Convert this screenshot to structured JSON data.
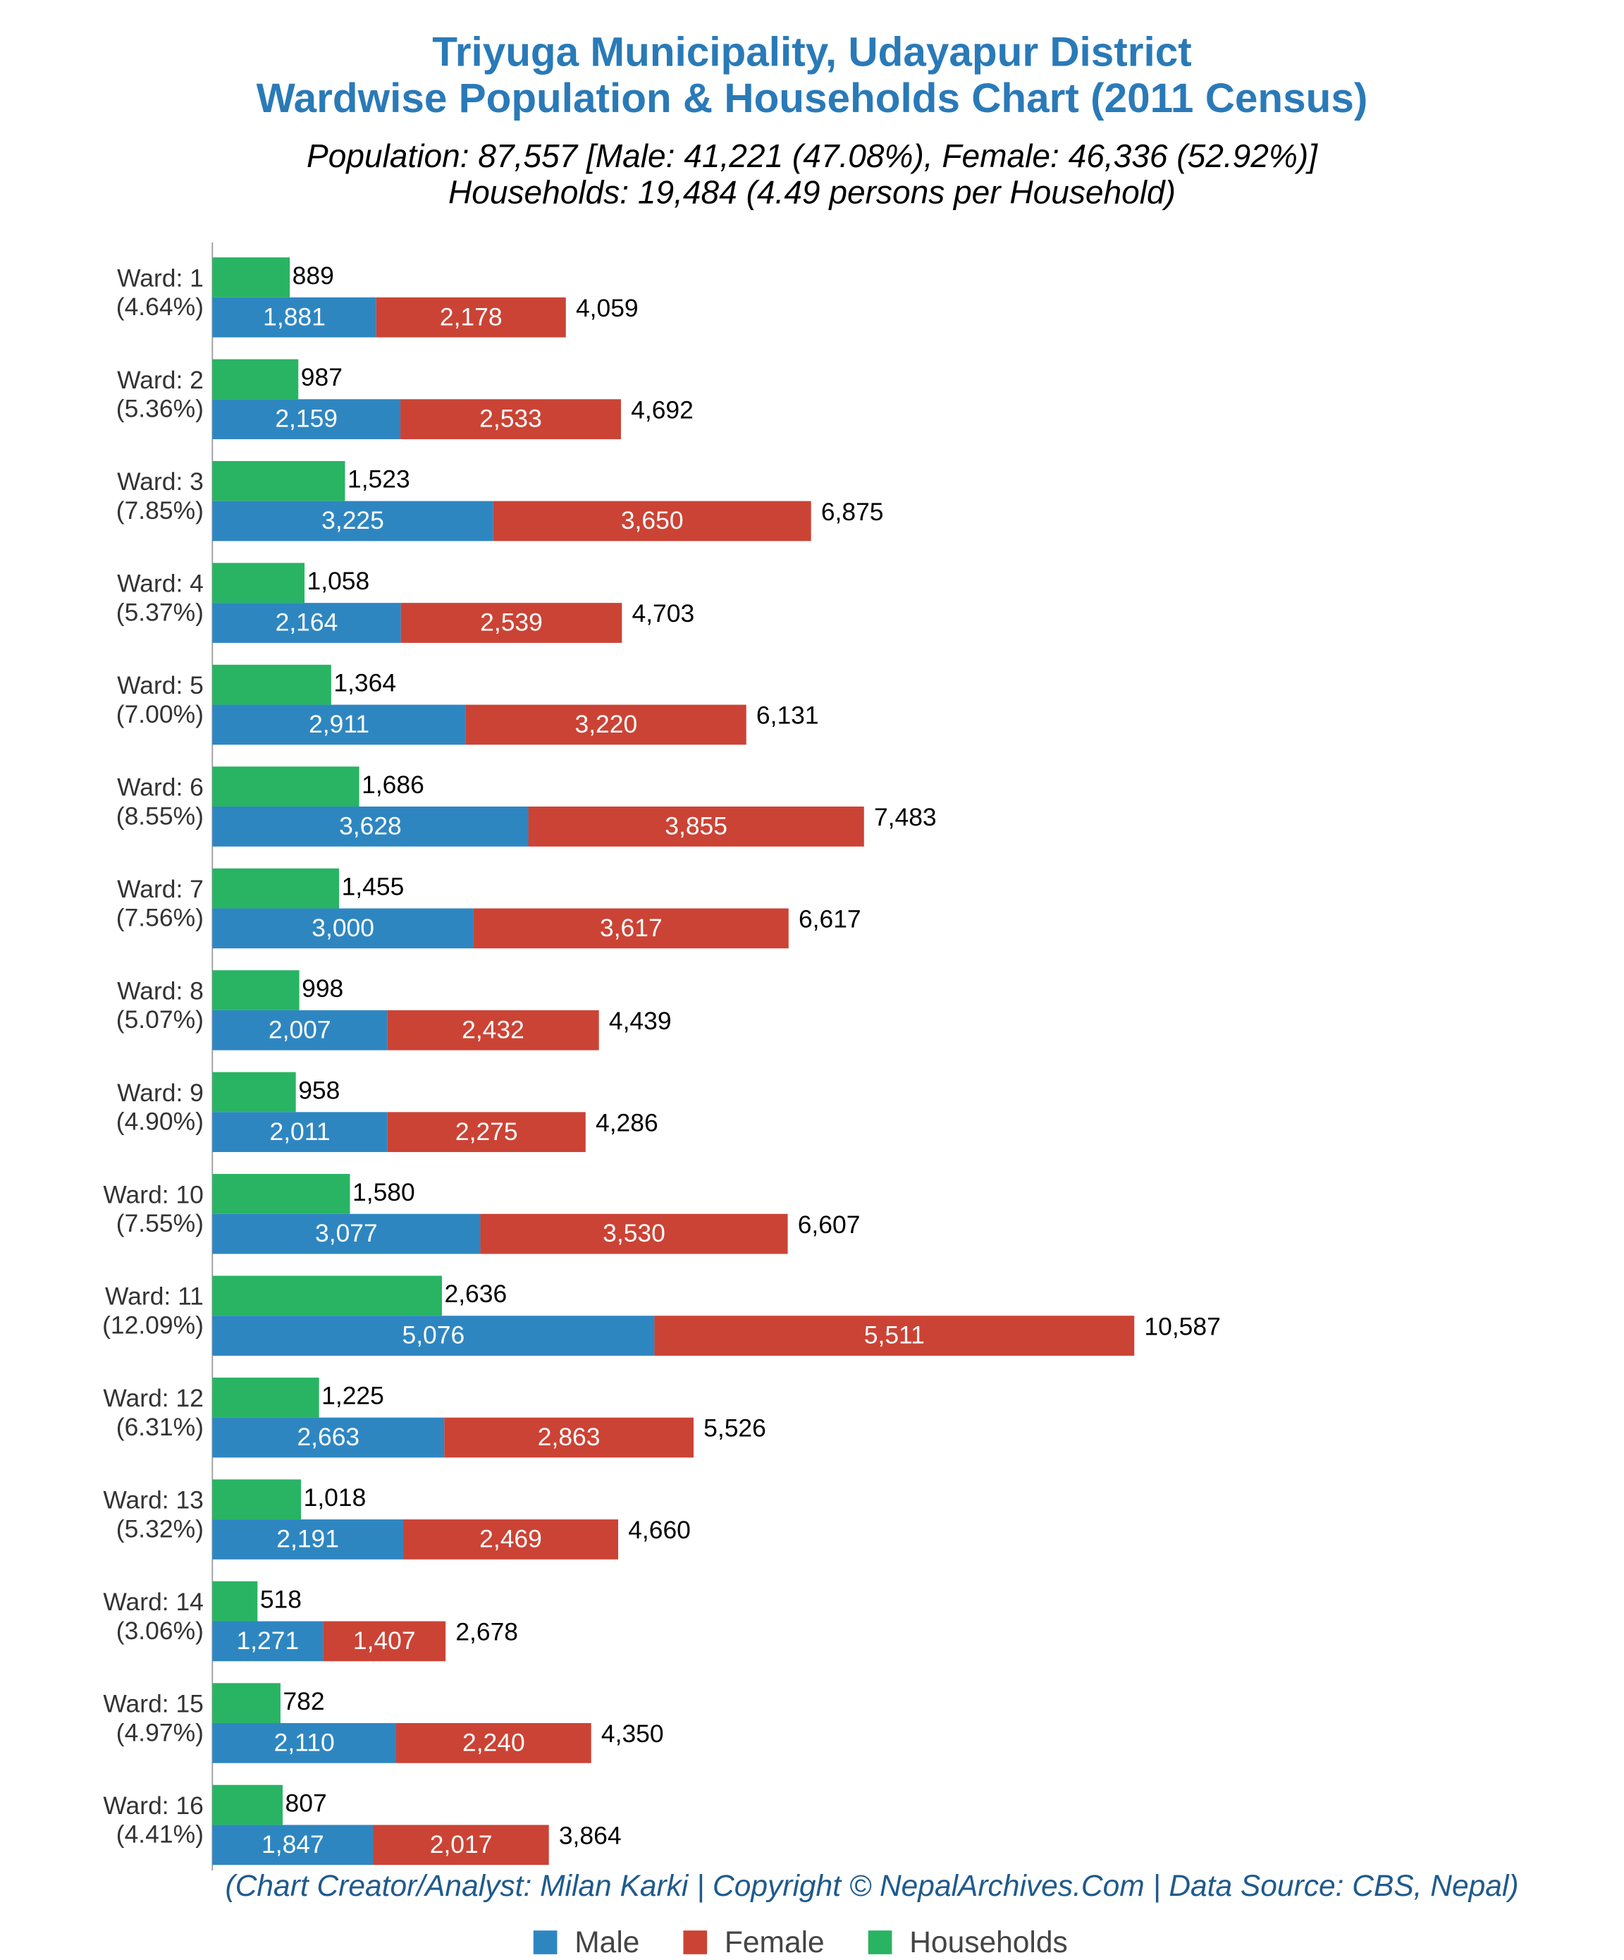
{
  "chart_data": {
    "type": "bar",
    "title": [
      "Triyuga Municipality, Udayapur District",
      "Wardwise Population & Households Chart (2011 Census)"
    ],
    "subtitle": [
      "Population: 87,557 [Male: 41,221 (47.08%), Female: 46,336 (52.92%)]",
      "Households: 19,484 (4.49 persons per Household)"
    ],
    "footer": "(Chart Creator/Analyst: Milan Karki | Copyright © NepalArchives.Com | Data Source: CBS, Nepal)",
    "categories": [
      "Ward: 1",
      "Ward: 2",
      "Ward: 3",
      "Ward: 4",
      "Ward: 5",
      "Ward: 6",
      "Ward: 7",
      "Ward: 8",
      "Ward: 9",
      "Ward: 10",
      "Ward: 11",
      "Ward: 12",
      "Ward: 13",
      "Ward: 14",
      "Ward: 15",
      "Ward: 16"
    ],
    "category_shares": [
      "(4.64%)",
      "(5.36%)",
      "(7.85%)",
      "(5.37%)",
      "(7.00%)",
      "(8.55%)",
      "(7.56%)",
      "(5.07%)",
      "(4.90%)",
      "(7.55%)",
      "(12.09%)",
      "(6.31%)",
      "(5.32%)",
      "(3.06%)",
      "(4.97%)",
      "(4.41%)"
    ],
    "series": [
      {
        "name": "Male",
        "color": "#2e86c1",
        "values": [
          1881,
          2159,
          3225,
          2164,
          2911,
          3628,
          3000,
          2007,
          2011,
          3077,
          5076,
          2663,
          2191,
          1271,
          2110,
          1847
        ],
        "value_labels": [
          "1,881",
          "2,159",
          "3,225",
          "2,164",
          "2,911",
          "3,628",
          "3,000",
          "2,007",
          "2,011",
          "3,077",
          "5,076",
          "2,663",
          "2,191",
          "1,271",
          "2,110",
          "1,847"
        ]
      },
      {
        "name": "Female",
        "color": "#cb4335",
        "values": [
          2178,
          2533,
          3650,
          2539,
          3220,
          3855,
          3617,
          2432,
          2275,
          3530,
          5511,
          2863,
          2469,
          1407,
          2240,
          2017
        ],
        "value_labels": [
          "2,178",
          "2,533",
          "3,650",
          "2,539",
          "3,220",
          "3,855",
          "3,617",
          "2,432",
          "2,275",
          "3,530",
          "5,511",
          "2,863",
          "2,469",
          "1,407",
          "2,240",
          "2,017"
        ]
      },
      {
        "name": "Households",
        "color": "#28b463",
        "values": [
          889,
          987,
          1523,
          1058,
          1364,
          1686,
          1455,
          998,
          958,
          1580,
          2636,
          1225,
          1018,
          518,
          782,
          807
        ],
        "value_labels": [
          "889",
          "987",
          "1,523",
          "1,058",
          "1,364",
          "1,686",
          "1,455",
          "998",
          "958",
          "1,580",
          "2,636",
          "1,225",
          "1,018",
          "518",
          "782",
          "807"
        ]
      }
    ],
    "totals": {
      "values": [
        4059,
        4692,
        6875,
        4703,
        6131,
        7483,
        6617,
        4439,
        4286,
        6607,
        10587,
        5526,
        4660,
        2678,
        4350,
        3864
      ],
      "value_labels": [
        "4,059",
        "4,692",
        "6,875",
        "4,703",
        "6,131",
        "7,483",
        "6,617",
        "4,439",
        "4,286",
        "6,607",
        "10,587",
        "5,526",
        "4,660",
        "2,678",
        "4,350",
        "3,864"
      ]
    },
    "xlim": [
      0,
      11000
    ],
    "legend": "bottom"
  }
}
